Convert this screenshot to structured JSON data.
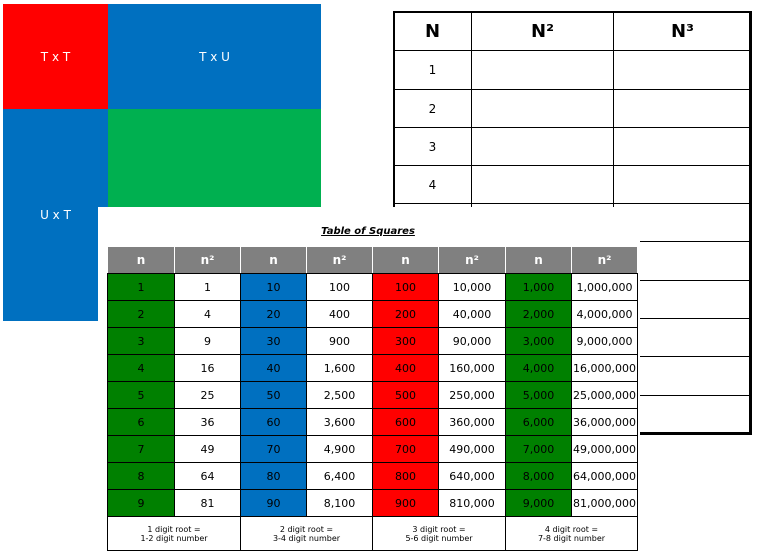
{
  "area_model": {
    "labels": [
      "T x T",
      "T x U",
      "U x T"
    ]
  },
  "cubes_table": {
    "headers": [
      "N",
      "N²",
      "N³"
    ],
    "rows": [
      "1",
      "2",
      "3",
      "4"
    ]
  },
  "squares_table": {
    "title": "Table of Squares",
    "headers": [
      "n",
      "n²",
      "n",
      "n²",
      "n",
      "n²",
      "n",
      "n²"
    ],
    "rows": [
      [
        "1",
        "1",
        "10",
        "100",
        "100",
        "10,000",
        "1,000",
        "1,000,000"
      ],
      [
        "2",
        "4",
        "20",
        "400",
        "200",
        "40,000",
        "2,000",
        "4,000,000"
      ],
      [
        "3",
        "9",
        "30",
        "900",
        "300",
        "90,000",
        "3,000",
        "9,000,000"
      ],
      [
        "4",
        "16",
        "40",
        "1,600",
        "400",
        "160,000",
        "4,000",
        "16,000,000"
      ],
      [
        "5",
        "25",
        "50",
        "2,500",
        "500",
        "250,000",
        "5,000",
        "25,000,000"
      ],
      [
        "6",
        "36",
        "60",
        "3,600",
        "600",
        "360,000",
        "6,000",
        "36,000,000"
      ],
      [
        "7",
        "49",
        "70",
        "4,900",
        "700",
        "490,000",
        "7,000",
        "49,000,000"
      ],
      [
        "8",
        "64",
        "80",
        "6,400",
        "800",
        "640,000",
        "8,000",
        "64,000,000"
      ],
      [
        "9",
        "81",
        "90",
        "8,100",
        "900",
        "810,000",
        "9,000",
        "81,000,000"
      ]
    ],
    "notes": [
      [
        "1 digit root =",
        "1-2 digit number"
      ],
      [
        "2 digit root =",
        "3-4 digit number"
      ],
      [
        "3 digit root =",
        "5-6 digit number"
      ],
      [
        "4 digit root =",
        "7-8 digit number"
      ]
    ]
  }
}
